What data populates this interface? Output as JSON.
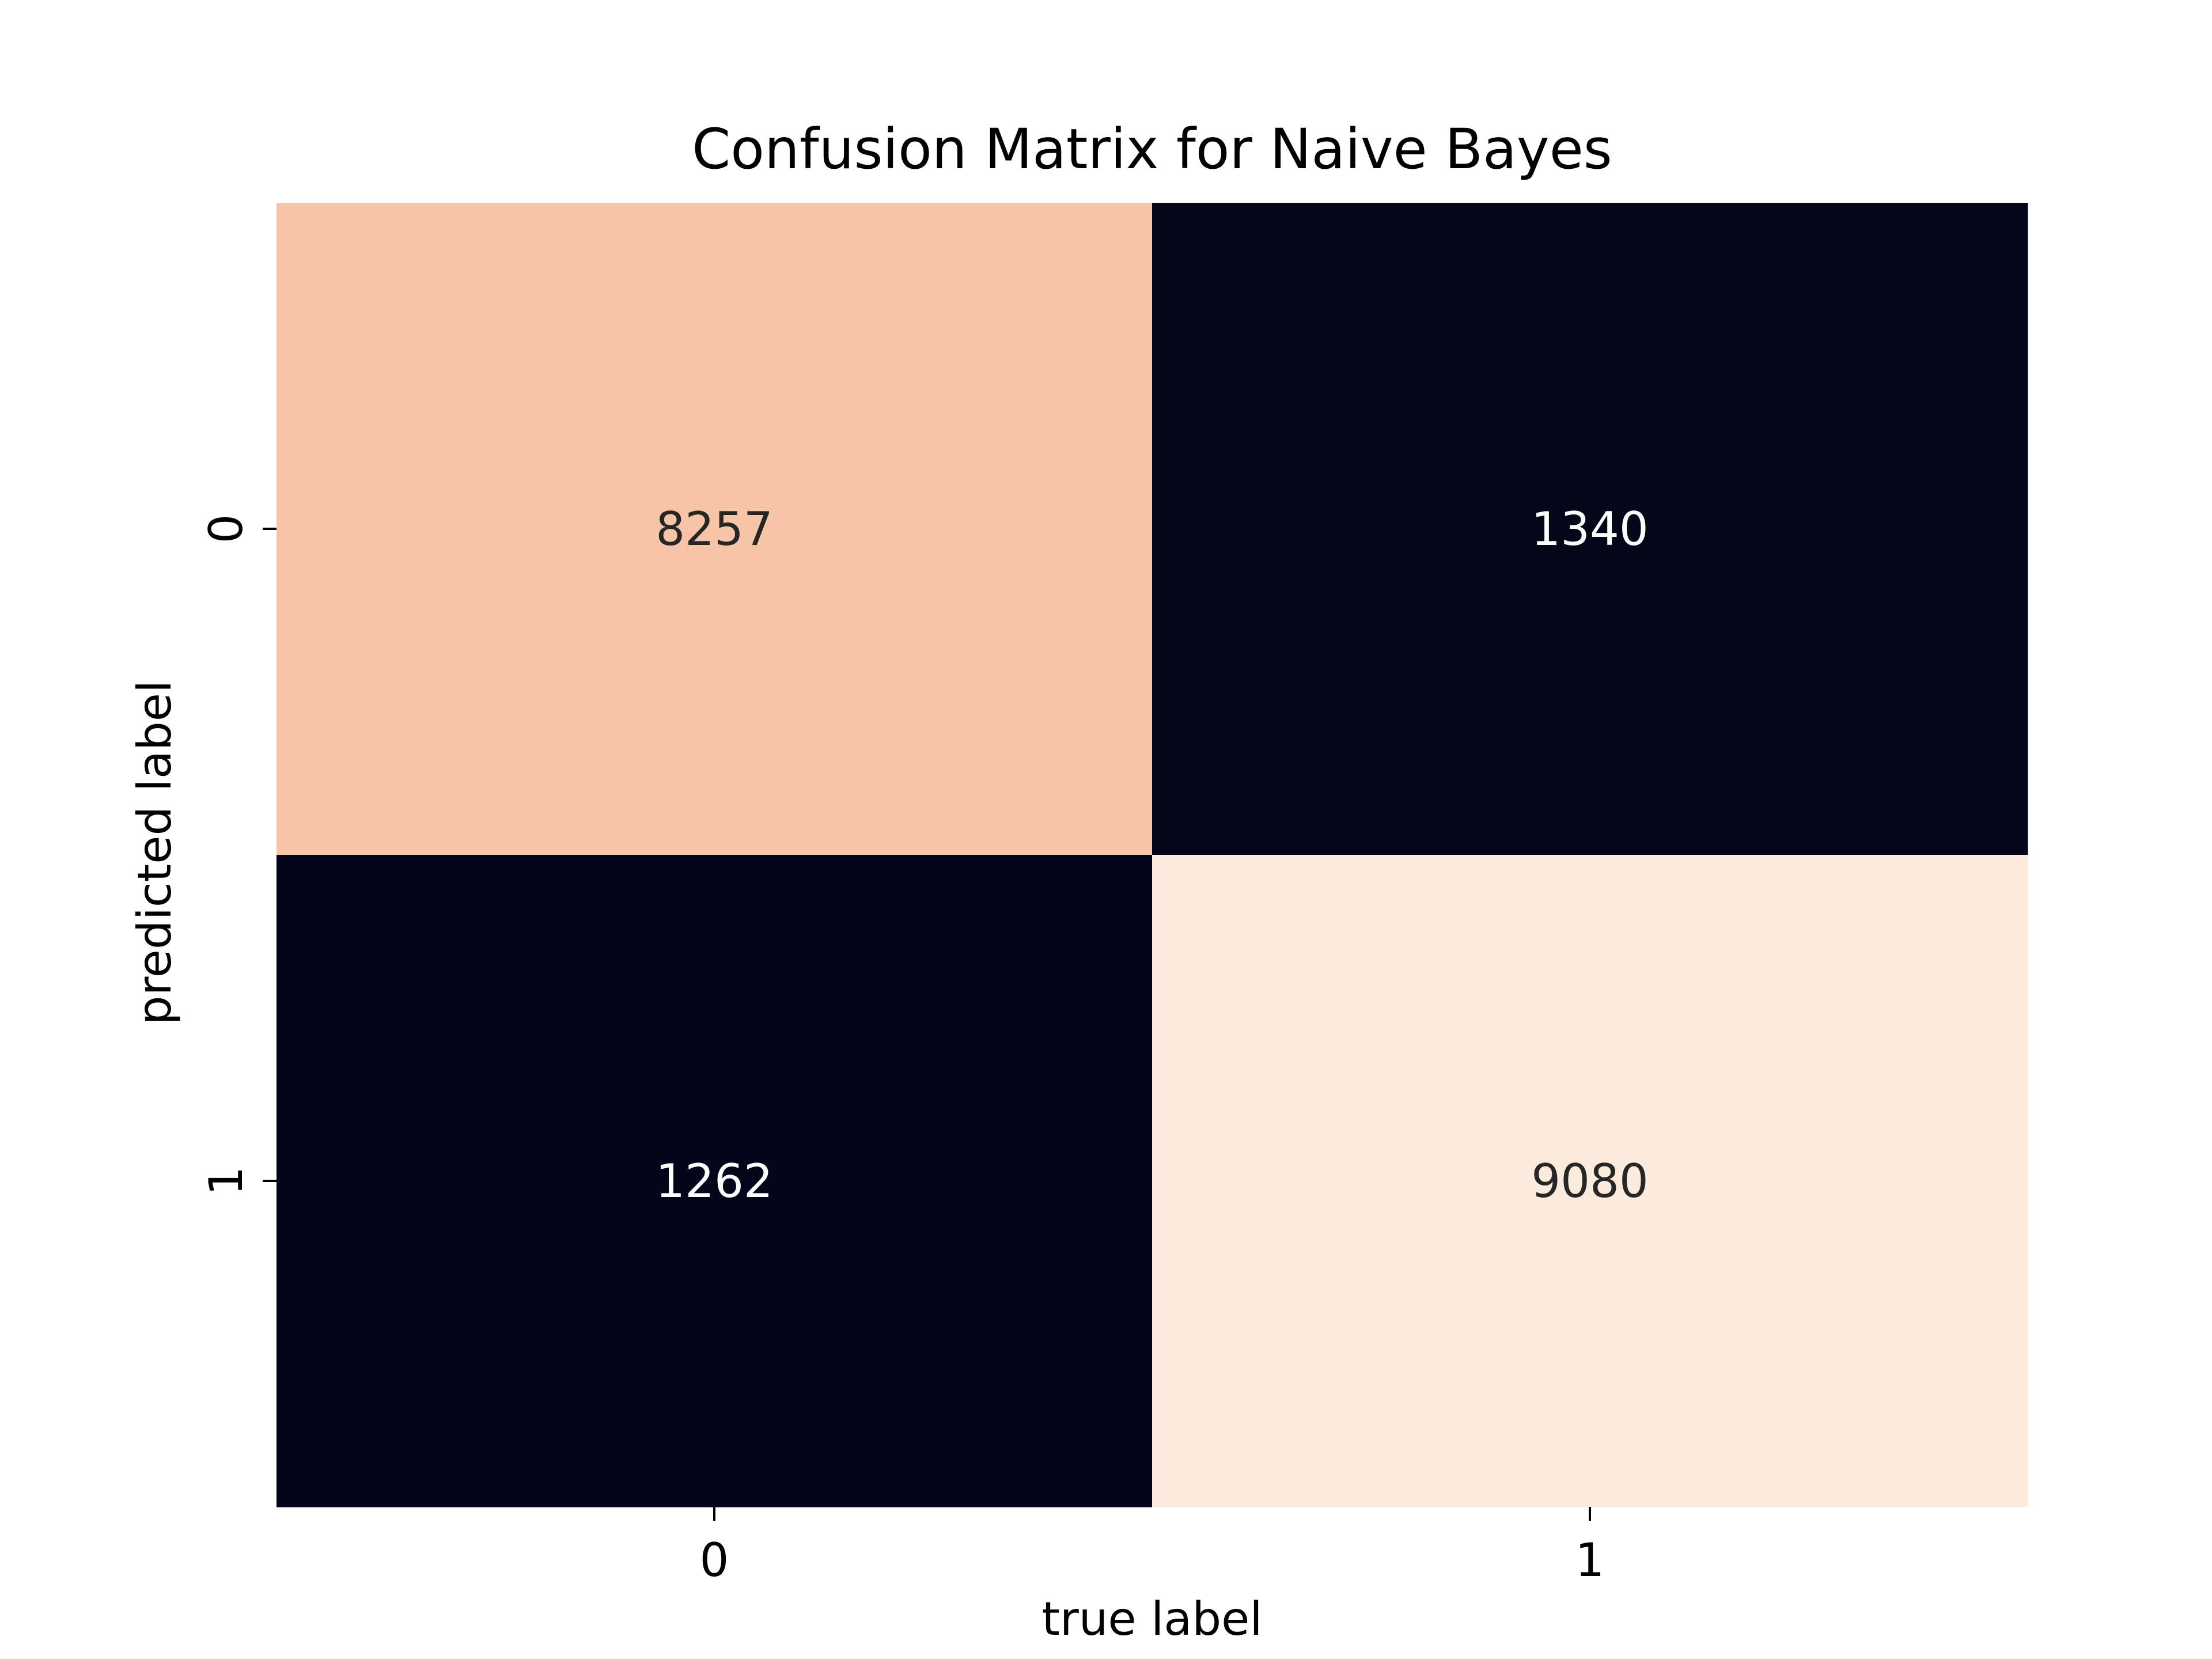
{
  "chart_data": {
    "type": "heatmap",
    "title": "Confusion Matrix for Naive Bayes",
    "xlabel": "true label",
    "ylabel": "predicted label",
    "x_categories": [
      "0",
      "1"
    ],
    "y_categories": [
      "0",
      "1"
    ],
    "values": [
      [
        8257,
        1340
      ],
      [
        1262,
        9080
      ]
    ],
    "colorbar": false,
    "colors": {
      "cell_high_low": [
        "#faebdd",
        "#03051a"
      ],
      "cell_0_0": "#f6c5a7",
      "cell_0_1": "#060619",
      "cell_1_0": "#03051a",
      "cell_1_1": "#faebdd",
      "annotation_dark_bg": "#ffffff",
      "annotation_light_bg": "#262626",
      "axis_text": "#000000"
    }
  }
}
